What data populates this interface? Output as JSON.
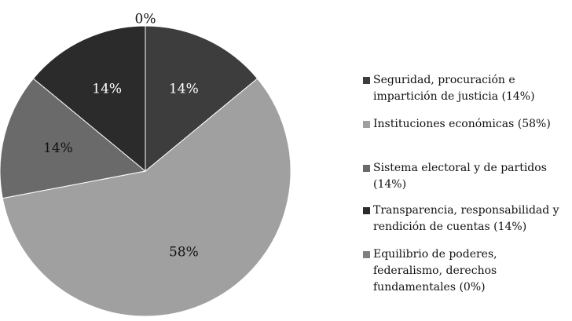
{
  "chart_data": {
    "type": "pie",
    "slices": [
      {
        "label": "Seguridad, procuración e impartición de justicia (14%)",
        "value": 14,
        "data_label": "14%",
        "color": "#3d3d3d"
      },
      {
        "label": "Instituciones económicas (58%)",
        "value": 58,
        "data_label": "58%",
        "color": "#a0a0a0"
      },
      {
        "label": "Sistema electoral y de partidos (14%)",
        "value": 14,
        "data_label": "14%",
        "color": "#6a6a6a"
      },
      {
        "label": "Transparencia, responsabilidad y rendición de cuentas (14%)",
        "value": 14,
        "data_label": "14%",
        "color": "#2b2b2b"
      },
      {
        "label": "Equilibrio de poderes, federalismo, derechos fundamentales (0%)",
        "value": 0,
        "data_label": "0%",
        "color": "#808080"
      }
    ],
    "legend_position": "right",
    "start_angle": "top, clockwise"
  }
}
